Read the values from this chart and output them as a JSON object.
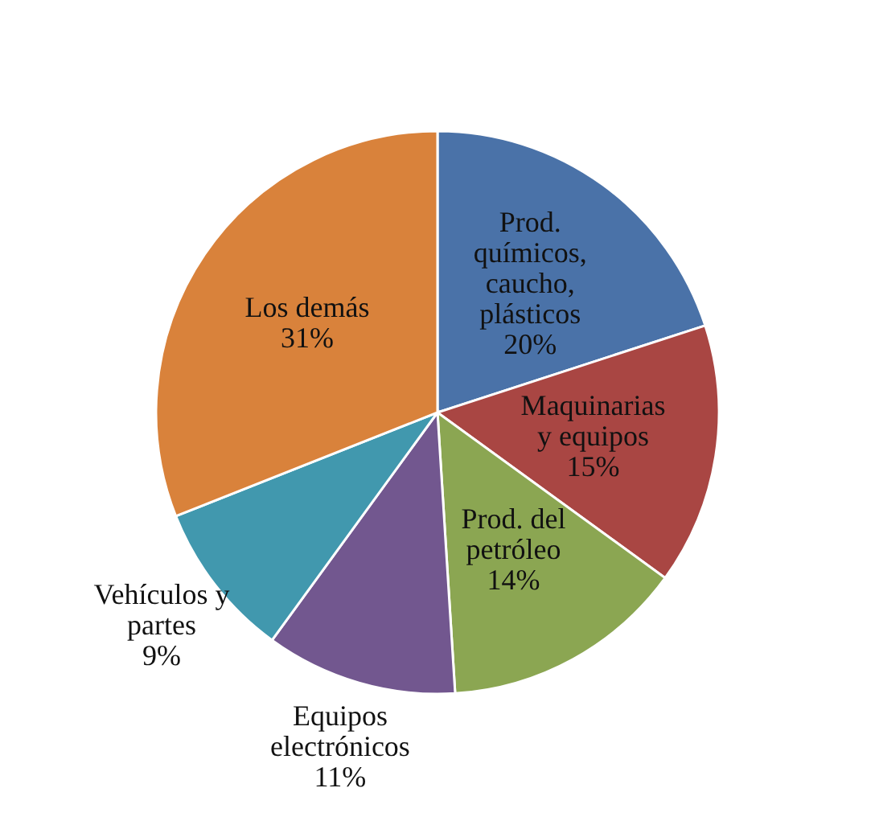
{
  "chart_data": {
    "type": "pie",
    "categories": [
      "Prod. químicos, caucho, plásticos",
      "Maquinarias y equipos",
      "Prod. del petróleo",
      "Equipos electrónicos",
      "Vehículos y partes",
      "Los demás"
    ],
    "values": [
      20,
      15,
      14,
      11,
      9,
      31
    ],
    "value_labels": [
      "20%",
      "15%",
      "14%",
      "11%",
      "9%",
      "31%"
    ],
    "colors": [
      "#4a72a8",
      "#a94643",
      "#8ba652",
      "#72578f",
      "#4198ae",
      "#d9823b"
    ]
  }
}
